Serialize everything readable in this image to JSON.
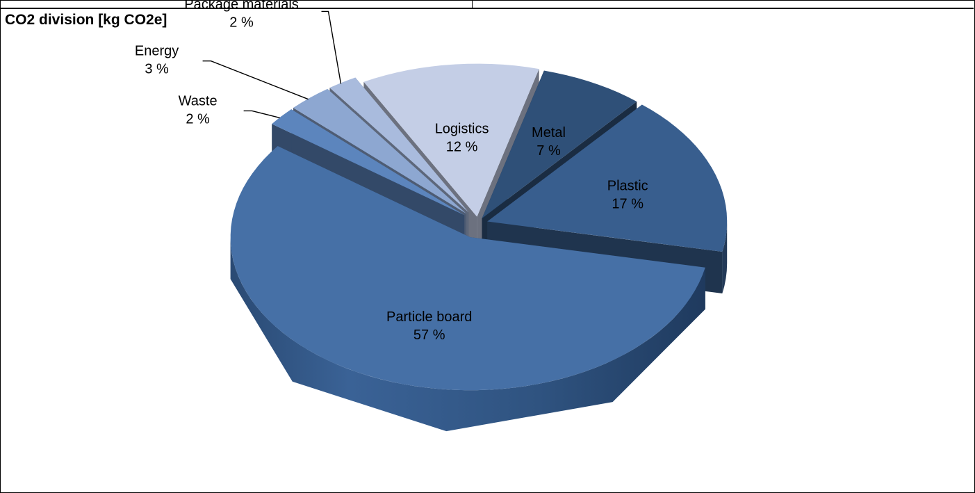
{
  "title": "CO2 division [kg CO2e]",
  "chart_data": {
    "type": "pie",
    "three_d": true,
    "exploded": true,
    "legend": "none",
    "slices": [
      {
        "label": "Metal",
        "value_label": "7 %",
        "value": 7,
        "color": "#2f5078"
      },
      {
        "label": "Plastic",
        "value_label": "17 %",
        "value": 17,
        "color": "#385e8e"
      },
      {
        "label": "Particle board",
        "value_label": "57 %",
        "value": 57,
        "color": "#4670a6"
      },
      {
        "label": "Waste",
        "value_label": "2 %",
        "value": 2,
        "color": "#5c85bd"
      },
      {
        "label": "Energy",
        "value_label": "3 %",
        "value": 3,
        "color": "#8da7d1"
      },
      {
        "label": "Package materials",
        "value_label": "2 %",
        "value": 2,
        "color": "#a9bbdd"
      },
      {
        "label": "Logistics",
        "value_label": "12 %",
        "value": 12,
        "color": "#c4cee6"
      }
    ]
  }
}
